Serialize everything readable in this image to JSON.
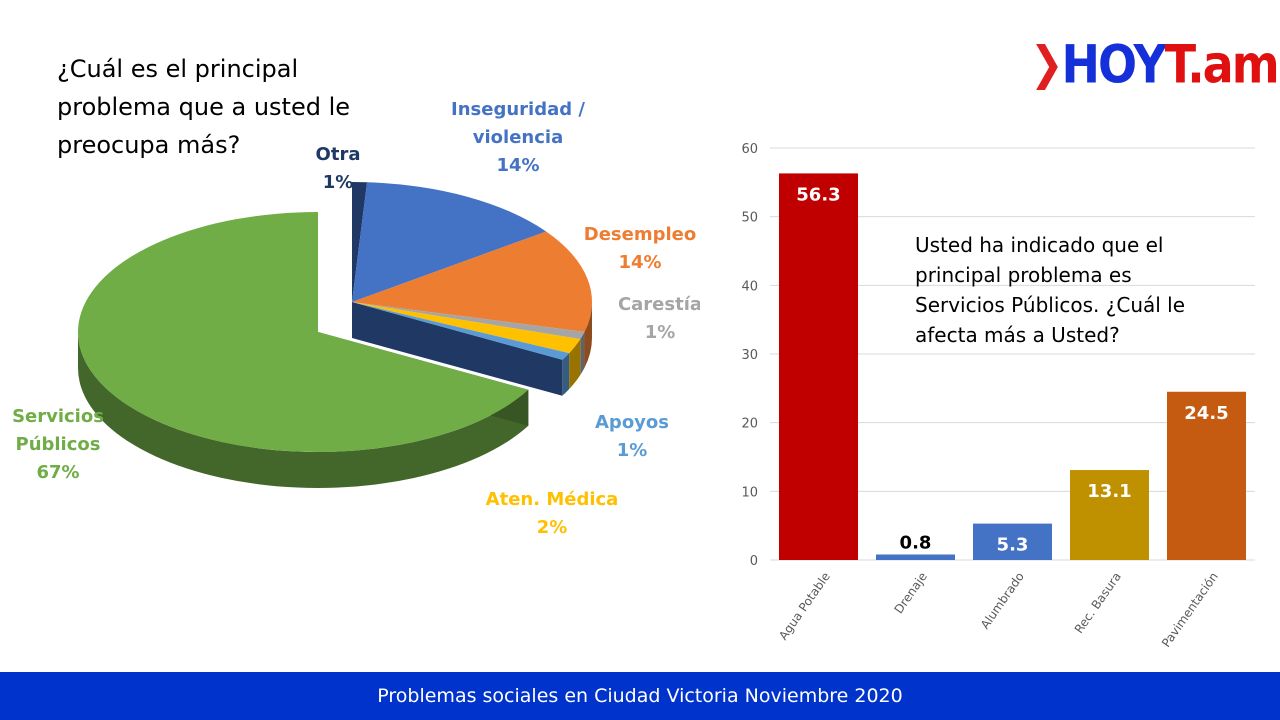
{
  "question": "¿Cuál es el principal problema que a usted le preocupa más?",
  "logo": {
    "part1": "HOY",
    "part2": "T.am"
  },
  "footer": "Problemas sociales en Ciudad Victoria Noviembre 2020",
  "note": "Usted ha indicado que el principal problema es Servicios Públicos. ¿Cuál le afecta más a Usted?",
  "chart_data": [
    {
      "type": "pie",
      "title": "¿Cuál es el principal problema que a usted le preocupa más?",
      "slices": [
        {
          "label": "Otra",
          "value": 1,
          "pct": "1%",
          "color": "#1f3864"
        },
        {
          "label": "Inseguridad / violencia",
          "value": 14,
          "pct": "14%",
          "color": "#4472c4"
        },
        {
          "label": "Desempleo",
          "value": 14,
          "pct": "14%",
          "color": "#ed7d31"
        },
        {
          "label": "Carestía",
          "value": 1,
          "pct": "1%",
          "color": "#a5a5a5"
        },
        {
          "label": "Aten. Médica",
          "value": 2,
          "pct": "2%",
          "color": "#ffc000"
        },
        {
          "label": "Apoyos",
          "value": 1,
          "pct": "1%",
          "color": "#5b9bd5"
        },
        {
          "label": "Servicios Públicos",
          "value": 67,
          "pct": "67%",
          "color": "#70ad47"
        }
      ]
    },
    {
      "type": "bar",
      "categories": [
        "Agua Potable",
        "Drenaje",
        "Alumbrado",
        "Rec. Basura",
        "Pavimentación"
      ],
      "values": [
        56.3,
        0.8,
        5.3,
        13.1,
        24.5
      ],
      "labels": [
        "56.3",
        "0.8",
        "5.3",
        "13.1",
        "24.5"
      ],
      "colors": [
        "#c00000",
        "#4472c4",
        "#4472c4",
        "#bf9000",
        "#c55a11"
      ],
      "ylim": [
        0,
        60
      ],
      "yticks": [
        "0",
        "10",
        "20",
        "30",
        "40",
        "50",
        "60"
      ],
      "grid": true
    }
  ]
}
